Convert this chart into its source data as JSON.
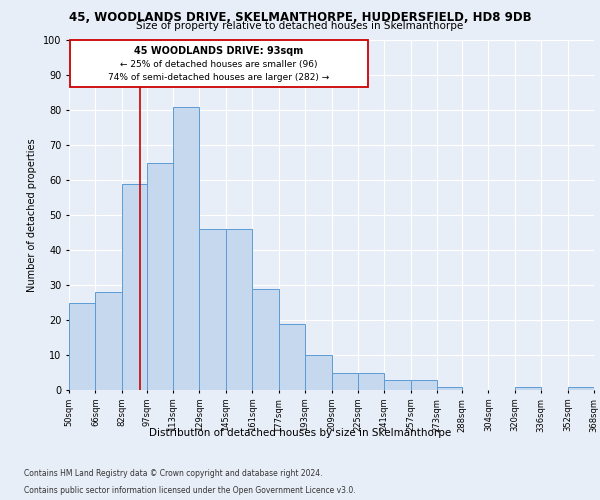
{
  "title": "45, WOODLANDS DRIVE, SKELMANTHORPE, HUDDERSFIELD, HD8 9DB",
  "subtitle": "Size of property relative to detached houses in Skelmanthorpe",
  "xlabel": "Distribution of detached houses by size in Skelmanthorpe",
  "ylabel": "Number of detached properties",
  "bar_values": [
    25,
    28,
    59,
    65,
    81,
    46,
    46,
    29,
    19,
    10,
    5,
    5,
    3,
    3,
    1,
    0,
    0,
    1,
    0,
    1
  ],
  "bin_edges": [
    50,
    66,
    82,
    97,
    113,
    129,
    145,
    161,
    177,
    193,
    209,
    225,
    241,
    257,
    273,
    288,
    304,
    320,
    336,
    352,
    368
  ],
  "bar_color": "#c5d8ed",
  "bar_edge_color": "#5b9bd5",
  "property_line_x": 93,
  "property_line_label": "45 WOODLANDS DRIVE: 93sqm",
  "annotation_line1": "← 25% of detached houses are smaller (96)",
  "annotation_line2": "74% of semi-detached houses are larger (282) →",
  "annotation_box_edge": "#cc0000",
  "vline_color": "#cc0000",
  "ylim": [
    0,
    100
  ],
  "yticks": [
    0,
    10,
    20,
    30,
    40,
    50,
    60,
    70,
    80,
    90,
    100
  ],
  "footer1": "Contains HM Land Registry data © Crown copyright and database right 2024.",
  "footer2": "Contains public sector information licensed under the Open Government Licence v3.0.",
  "bg_color": "#e8eef7",
  "plot_bg_color": "#e8eef7",
  "grid_color": "#ffffff",
  "title_fontsize": 8.5,
  "subtitle_fontsize": 7.5
}
